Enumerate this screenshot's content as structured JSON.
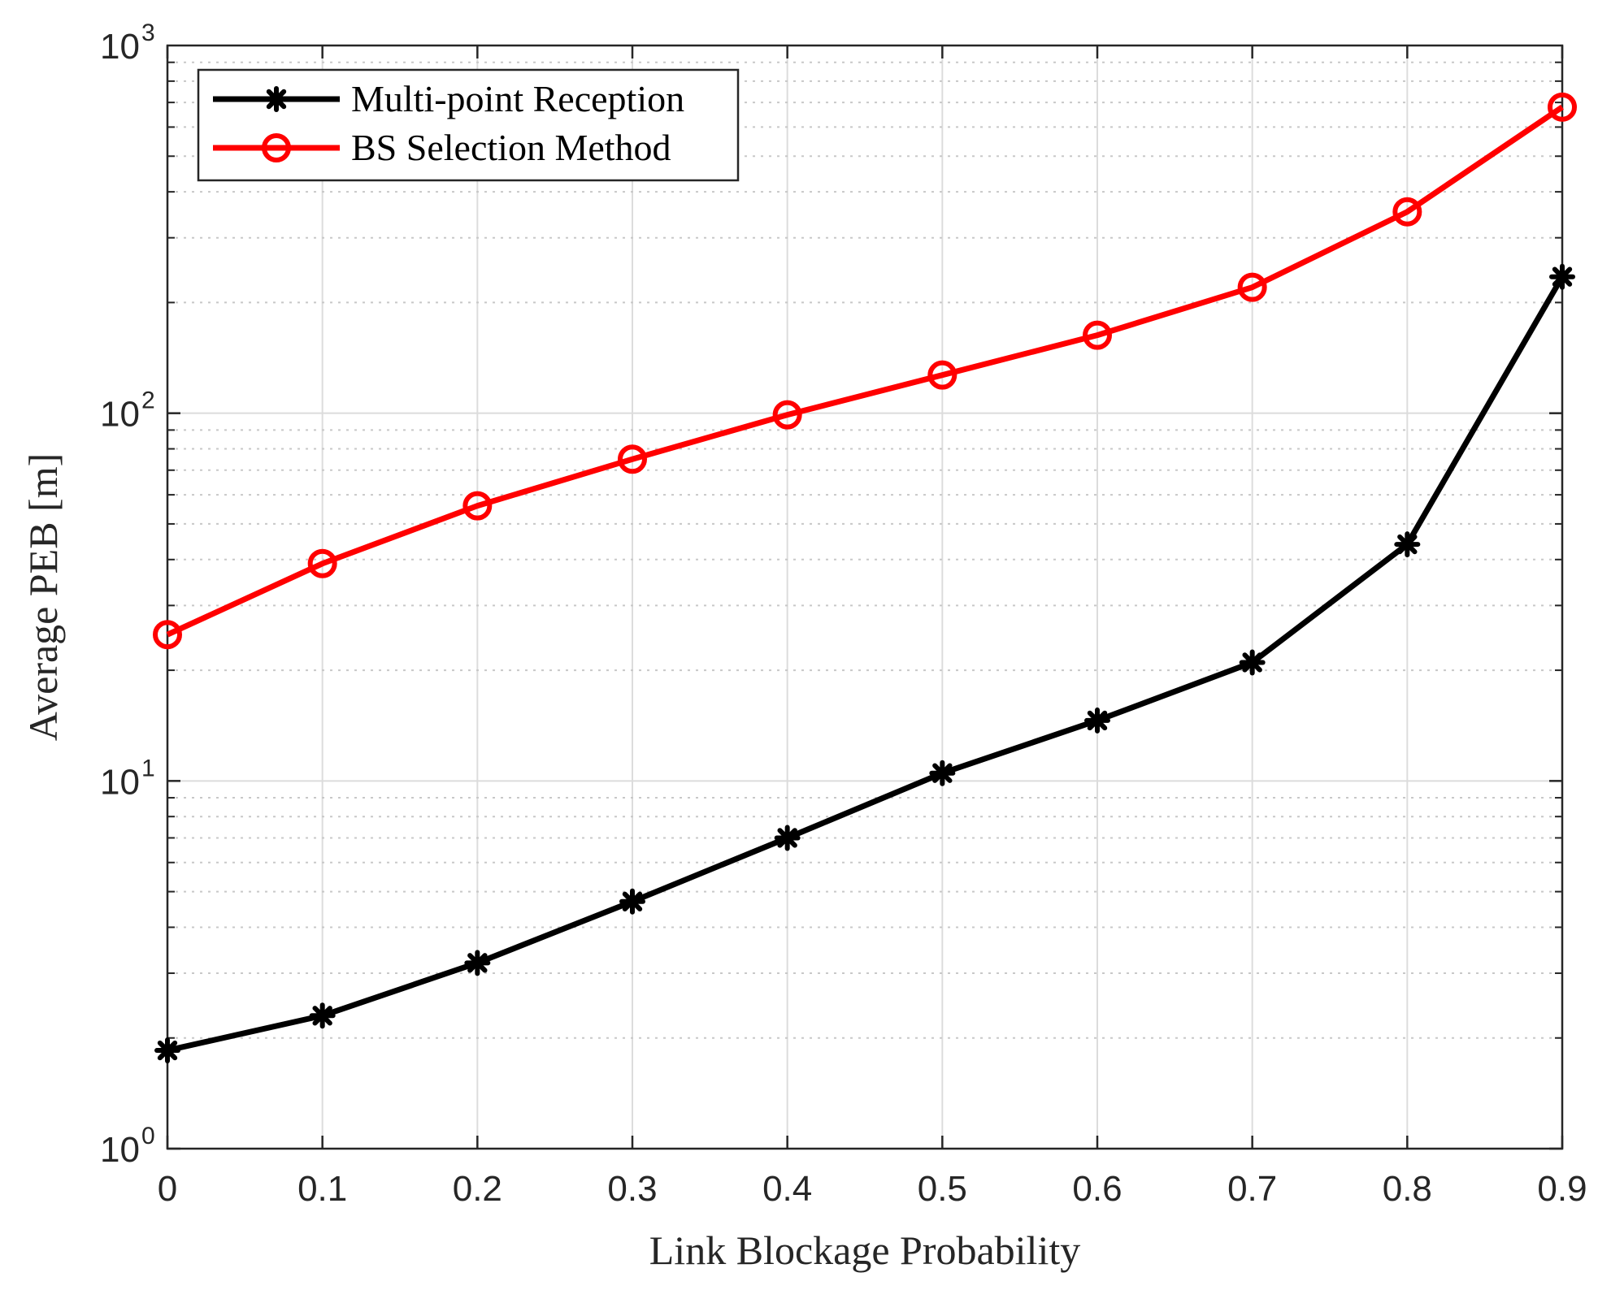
{
  "chart_data": {
    "type": "line",
    "title": "",
    "xlabel": "Link Blockage Probability",
    "ylabel": "Average PEB [m]",
    "x": [
      0,
      0.1,
      0.2,
      0.3,
      0.4,
      0.5,
      0.6,
      0.7,
      0.8,
      0.9
    ],
    "xlim": [
      0,
      0.9
    ],
    "ylim": [
      1,
      1000
    ],
    "yscale": "log",
    "grid": true,
    "legend_position": "top-left",
    "x_ticks": [
      "0",
      "0.1",
      "0.2",
      "0.3",
      "0.4",
      "0.5",
      "0.6",
      "0.7",
      "0.8",
      "0.9"
    ],
    "y_ticks": [
      {
        "base": "10",
        "exp": "0",
        "value": 1
      },
      {
        "base": "10",
        "exp": "1",
        "value": 10
      },
      {
        "base": "10",
        "exp": "2",
        "value": 100
      },
      {
        "base": "10",
        "exp": "3",
        "value": 1000
      }
    ],
    "series": [
      {
        "name": "Multi-point Reception",
        "color": "#000000",
        "marker": "asterisk",
        "values": [
          1.85,
          2.3,
          3.2,
          4.7,
          7.0,
          10.5,
          14.6,
          21.0,
          44.0,
          235.0
        ]
      },
      {
        "name": "BS Selection Method",
        "color": "#ff0000",
        "marker": "circle",
        "values": [
          25.0,
          39.0,
          56.0,
          75.0,
          99.0,
          127.0,
          163.0,
          220.0,
          353.0,
          680.0
        ]
      }
    ]
  }
}
